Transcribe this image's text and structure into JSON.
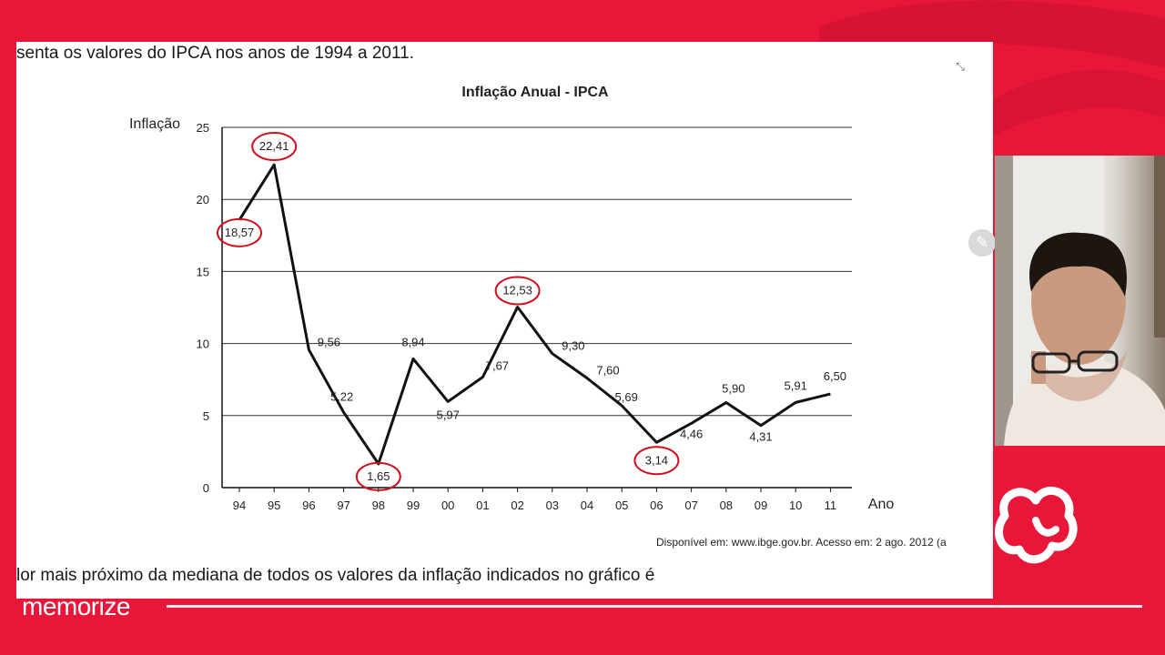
{
  "document": {
    "top_text": "senta os valores do IPCA nos anos de 1994 a 2011.",
    "bottom_text": "lor mais próximo da mediana de todos os valores da inflação indicados no gráfico é",
    "source": "Disponível em: www.ibge.gov.br. Acesso em: 2 ago. 2012 (a"
  },
  "icons": {
    "expand": "expand-icon",
    "pencil": "pencil-icon",
    "logo": "brand-logo"
  },
  "branding": {
    "name": "memorize"
  },
  "colors": {
    "background": "#e8173a",
    "line": "#111111",
    "circle": "#d0101e",
    "grid": "#333333"
  },
  "chart_data": {
    "type": "line",
    "title": "Inflação Anual - IPCA",
    "ylabel": "Inflação",
    "xlabel": "Ano",
    "ylim": [
      0,
      25
    ],
    "yticks": [
      0,
      5,
      10,
      15,
      20,
      25
    ],
    "grid": true,
    "categories": [
      "94",
      "95",
      "96",
      "97",
      "98",
      "99",
      "00",
      "01",
      "02",
      "03",
      "04",
      "05",
      "06",
      "07",
      "08",
      "09",
      "10",
      "11"
    ],
    "values": [
      18.57,
      22.41,
      9.56,
      5.22,
      1.65,
      8.94,
      5.97,
      7.67,
      12.53,
      9.3,
      7.6,
      5.69,
      3.14,
      4.46,
      5.9,
      4.31,
      5.91,
      6.5
    ],
    "labels": [
      "18,57",
      "22,41",
      "9,56",
      "5,22",
      "1,65",
      "8,94",
      "5,97",
      "7,67",
      "12,53",
      "9,30",
      "7,60",
      "5,69",
      "3,14",
      "4,46",
      "5,90",
      "4,31",
      "5,91",
      "6,50"
    ],
    "circled": [
      "94",
      "95",
      "98",
      "02",
      "06"
    ]
  }
}
